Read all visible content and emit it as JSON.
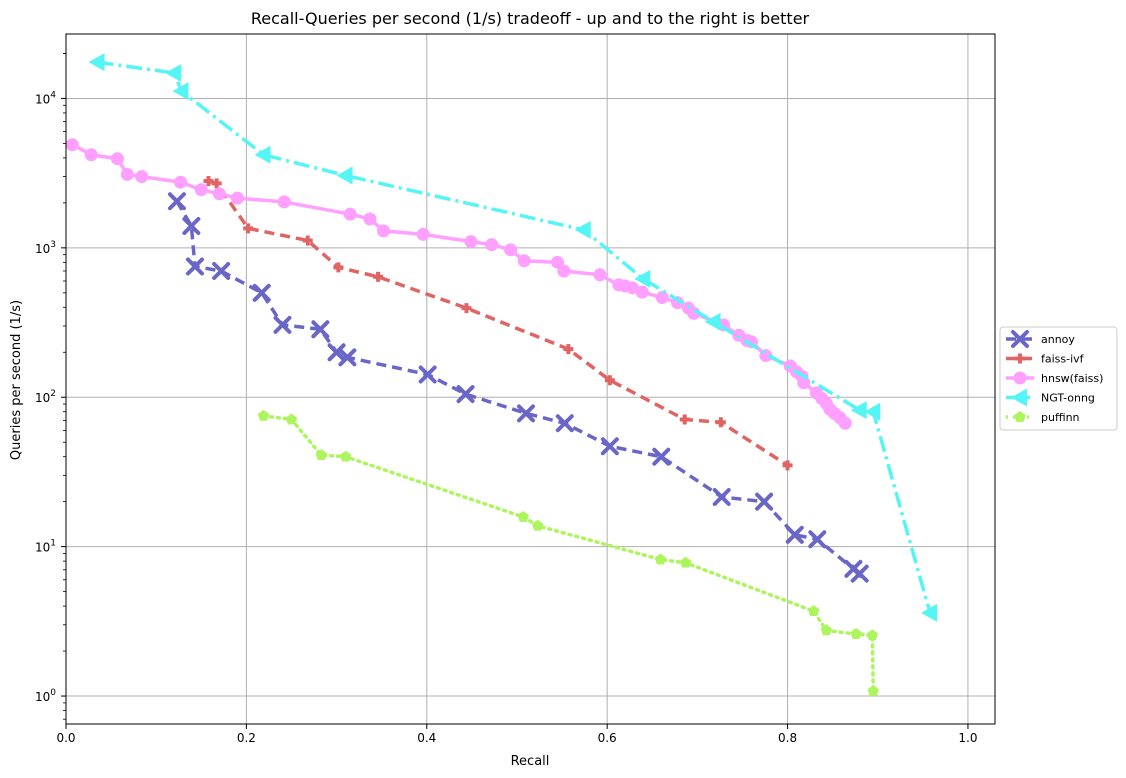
{
  "chart_data": {
    "type": "line",
    "title": "Recall-Queries per second (1/s) tradeoff - up and to the right is better",
    "xlabel": "Recall",
    "ylabel": "Queries per second (1/s)",
    "xlim": [
      0.0,
      1.03
    ],
    "ylim": [
      0.65,
      27000
    ],
    "yscale": "log",
    "grid": true,
    "legend_position": "center-right, outside plot",
    "x_ticks": [
      {
        "value": 0.0,
        "label": "0.0"
      },
      {
        "value": 0.2,
        "label": "0.2"
      },
      {
        "value": 0.4,
        "label": "0.4"
      },
      {
        "value": 0.6,
        "label": "0.6"
      },
      {
        "value": 0.8,
        "label": "0.8"
      },
      {
        "value": 1.0,
        "label": "1.0"
      }
    ],
    "y_ticks": [
      {
        "value": 1,
        "base": "10",
        "exp": "0"
      },
      {
        "value": 10,
        "base": "10",
        "exp": "1"
      },
      {
        "value": 100,
        "base": "10",
        "exp": "2"
      },
      {
        "value": 1000,
        "base": "10",
        "exp": "3"
      },
      {
        "value": 10000,
        "base": "10",
        "exp": "4"
      }
    ],
    "series": [
      {
        "name": "annoy",
        "color": "#6a66c8",
        "marker": "x",
        "dash": "10,6",
        "points": [
          [
            0.123,
            2050
          ],
          [
            0.139,
            1400
          ],
          [
            0.143,
            750
          ],
          [
            0.172,
            700
          ],
          [
            0.217,
            500
          ],
          [
            0.24,
            305
          ],
          [
            0.282,
            285
          ],
          [
            0.3,
            200
          ],
          [
            0.312,
            185
          ],
          [
            0.401,
            142
          ],
          [
            0.443,
            105
          ],
          [
            0.51,
            78
          ],
          [
            0.553,
            67
          ],
          [
            0.603,
            47
          ],
          [
            0.66,
            40
          ],
          [
            0.727,
            21.5
          ],
          [
            0.774,
            20
          ],
          [
            0.808,
            12
          ],
          [
            0.833,
            11.2
          ],
          [
            0.873,
            7.1
          ],
          [
            0.88,
            6.6
          ]
        ]
      },
      {
        "name": "faiss-ivf",
        "color": "#e06464",
        "marker": "plus",
        "dash": "10,6",
        "points": [
          [
            0.158,
            2800
          ],
          [
            0.167,
            2700
          ],
          [
            0.202,
            1350
          ],
          [
            0.268,
            1120
          ],
          [
            0.302,
            740
          ],
          [
            0.346,
            640
          ],
          [
            0.444,
            395
          ],
          [
            0.557,
            210
          ],
          [
            0.603,
            130
          ],
          [
            0.686,
            71
          ],
          [
            0.726,
            68
          ],
          [
            0.8,
            35
          ]
        ]
      },
      {
        "name": "hnsw(faiss)",
        "color": "#ff9fff",
        "marker": "circle",
        "dash": "",
        "points": [
          [
            0.007,
            4900
          ],
          [
            0.028,
            4200
          ],
          [
            0.057,
            3950
          ],
          [
            0.068,
            3100
          ],
          [
            0.084,
            3000
          ],
          [
            0.127,
            2750
          ],
          [
            0.15,
            2450
          ],
          [
            0.17,
            2300
          ],
          [
            0.19,
            2150
          ],
          [
            0.242,
            2030
          ],
          [
            0.315,
            1680
          ],
          [
            0.337,
            1560
          ],
          [
            0.352,
            1300
          ],
          [
            0.396,
            1230
          ],
          [
            0.449,
            1100
          ],
          [
            0.472,
            1050
          ],
          [
            0.493,
            970
          ],
          [
            0.508,
            820
          ],
          [
            0.545,
            800
          ],
          [
            0.552,
            700
          ],
          [
            0.592,
            660
          ],
          [
            0.613,
            565
          ],
          [
            0.62,
            555
          ],
          [
            0.628,
            540
          ],
          [
            0.639,
            505
          ],
          [
            0.661,
            465
          ],
          [
            0.678,
            430
          ],
          [
            0.69,
            395
          ],
          [
            0.696,
            365
          ],
          [
            0.729,
            305
          ],
          [
            0.746,
            260
          ],
          [
            0.755,
            240
          ],
          [
            0.76,
            235
          ],
          [
            0.776,
            190
          ],
          [
            0.803,
            162
          ],
          [
            0.81,
            148
          ],
          [
            0.816,
            138
          ],
          [
            0.818,
            125
          ],
          [
            0.832,
            107
          ],
          [
            0.838,
            98
          ],
          [
            0.843,
            91
          ],
          [
            0.847,
            83
          ],
          [
            0.852,
            78
          ],
          [
            0.858,
            73
          ],
          [
            0.864,
            67
          ]
        ]
      },
      {
        "name": "NGT-onng",
        "color": "#55f5f5",
        "marker": "triangle-left",
        "dash": "16,5,3,5",
        "points": [
          [
            0.035,
            17500
          ],
          [
            0.12,
            14800
          ],
          [
            0.128,
            11200
          ],
          [
            0.219,
            4200
          ],
          [
            0.31,
            3050
          ],
          [
            0.574,
            1320
          ],
          [
            0.64,
            620
          ],
          [
            0.718,
            320
          ],
          [
            0.88,
            82
          ],
          [
            0.895,
            80
          ],
          [
            0.958,
            3.6
          ]
        ]
      },
      {
        "name": "puffinn",
        "color": "#adf55c",
        "marker": "pentagon",
        "dash": "2,5",
        "points": [
          [
            0.219,
            75
          ],
          [
            0.25,
            71
          ],
          [
            0.283,
            41
          ],
          [
            0.31,
            40
          ],
          [
            0.507,
            15.8
          ],
          [
            0.523,
            13.8
          ],
          [
            0.659,
            8.2
          ],
          [
            0.687,
            7.8
          ],
          [
            0.829,
            3.7
          ],
          [
            0.843,
            2.75
          ],
          [
            0.876,
            2.6
          ],
          [
            0.894,
            2.55
          ],
          [
            0.895,
            1.08
          ]
        ]
      }
    ]
  }
}
